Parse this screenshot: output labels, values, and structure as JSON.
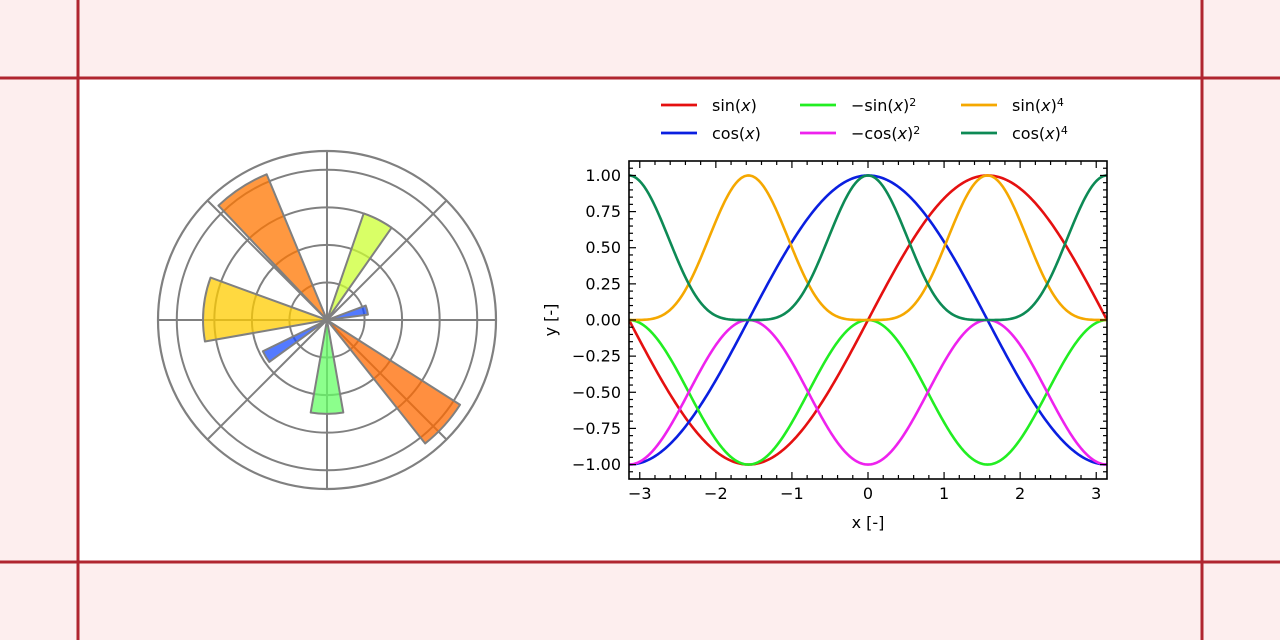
{
  "colors": {
    "page_background": "#fdeeee",
    "frame_lines": "#b0252f",
    "plot_background": "#ffffff",
    "polar_grid": "#808080"
  },
  "chart_data": [
    {
      "type": "bar",
      "projection": "polar",
      "grid": true,
      "r_max": 4.5,
      "r_ticks": [
        1,
        2,
        3,
        4
      ],
      "theta_grid_deg": [
        0,
        45,
        90,
        135,
        180,
        225,
        270,
        315
      ],
      "theta_tick_labels_visible": false,
      "r_tick_labels_visible": false,
      "bars": [
        {
          "theta_deg": 175,
          "width_deg": 30,
          "r": 3.3,
          "color": "#ffcc00"
        },
        {
          "theta_deg": 123,
          "width_deg": 21,
          "r": 4.2,
          "color": "#ff7500"
        },
        {
          "theta_deg": 63,
          "width_deg": 16,
          "r": 3.0,
          "color": "#ccff33"
        },
        {
          "theta_deg": 14,
          "width_deg": 13,
          "r": 1.1,
          "color": "#1a4dff"
        },
        {
          "theta_deg": 211,
          "width_deg": 10,
          "r": 1.9,
          "color": "#1a4dff"
        },
        {
          "theta_deg": 270,
          "width_deg": 20,
          "r": 2.5,
          "color": "#66ff66"
        },
        {
          "theta_deg": 318,
          "width_deg": 19,
          "r": 4.2,
          "color": "#ff6a00"
        }
      ]
    },
    {
      "type": "line",
      "xlabel": "x [-]",
      "ylabel": "y [-]",
      "xlim": [
        -3.1416,
        3.1416
      ],
      "ylim": [
        -1.1,
        1.1
      ],
      "x_ticks": [
        -3,
        -2,
        -1,
        0,
        1,
        2,
        3
      ],
      "x_tick_labels": [
        "−3",
        "−2",
        "−1",
        "0",
        "1",
        "2",
        "3"
      ],
      "y_ticks": [
        -1.0,
        -0.75,
        -0.5,
        -0.25,
        0.0,
        0.25,
        0.5,
        0.75,
        1.0
      ],
      "y_tick_labels": [
        "−1.00",
        "−0.75",
        "−0.50",
        "−0.25",
        "0.00",
        "0.25",
        "0.50",
        "0.75",
        "1.00"
      ],
      "grid": false,
      "legend_position": "top",
      "legend_columns": 3,
      "sample_count": 300,
      "series": [
        {
          "name": "sin(x)",
          "func": "sin",
          "color": "#e51010",
          "label_parts": [
            [
              "t",
              "sin("
            ],
            [
              "i",
              "x"
            ],
            [
              "t",
              ")"
            ]
          ]
        },
        {
          "name": "cos(x)",
          "func": "cos",
          "color": "#0a1fe0",
          "label_parts": [
            [
              "t",
              "cos("
            ],
            [
              "i",
              "x"
            ],
            [
              "t",
              ")"
            ]
          ]
        },
        {
          "name": "−sin(x)²",
          "func": "neg_sin2",
          "color": "#22ee22",
          "label_parts": [
            [
              "t",
              "−sin("
            ],
            [
              "i",
              "x"
            ],
            [
              "t",
              ")"
            ],
            [
              "s",
              "2"
            ]
          ]
        },
        {
          "name": "−cos(x)²",
          "func": "neg_cos2",
          "color": "#ee22ee",
          "label_parts": [
            [
              "t",
              "−cos("
            ],
            [
              "i",
              "x"
            ],
            [
              "t",
              ")"
            ],
            [
              "s",
              "2"
            ]
          ]
        },
        {
          "name": "sin(x)⁴",
          "func": "sin4",
          "color": "#f5a800",
          "label_parts": [
            [
              "t",
              "sin("
            ],
            [
              "i",
              "x"
            ],
            [
              "t",
              ")"
            ],
            [
              "s",
              "4"
            ]
          ]
        },
        {
          "name": "cos(x)⁴",
          "func": "cos4",
          "color": "#0d8a55",
          "label_parts": [
            [
              "t",
              "cos("
            ],
            [
              "i",
              "x"
            ],
            [
              "t",
              ")"
            ],
            [
              "s",
              "4"
            ]
          ]
        }
      ]
    }
  ]
}
